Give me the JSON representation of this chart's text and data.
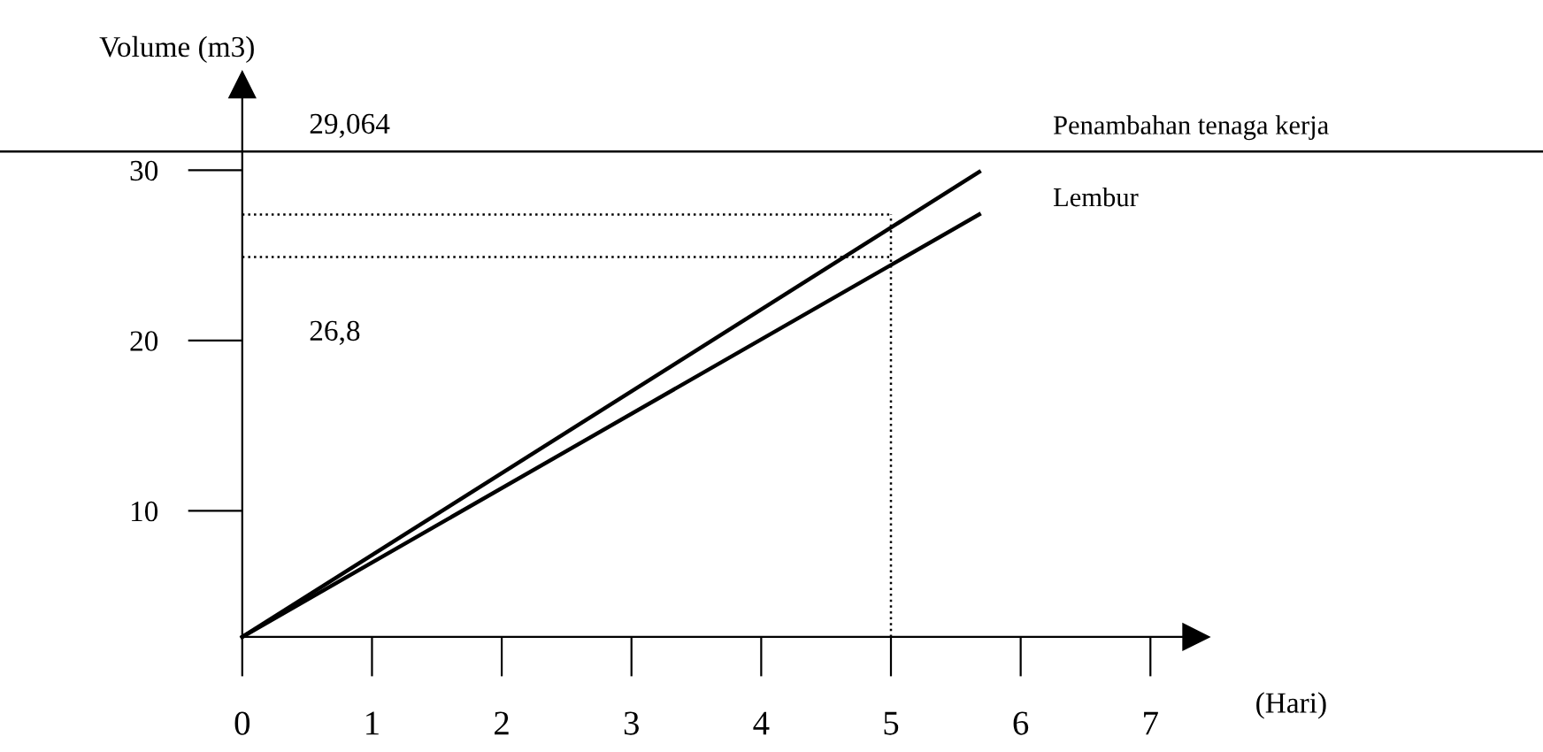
{
  "chart_data": {
    "type": "line",
    "xlabel": "(Hari)",
    "ylabel": "Volume (m3)",
    "xlim": [
      0,
      7.35
    ],
    "ylim": [
      2.6,
      35
    ],
    "xticks": [
      0,
      1,
      2,
      3,
      4,
      5,
      6,
      7
    ],
    "yticks": [
      10,
      20,
      30
    ],
    "series": [
      {
        "name": "Penambahan tenaga kerja",
        "color": "#000000",
        "x": [
          0,
          5.68
        ],
        "values": [
          2.6,
          29.9
        ]
      },
      {
        "name": "Lembur",
        "color": "#000000",
        "x": [
          0,
          5.68
        ],
        "values": [
          2.6,
          27.4
        ]
      },
      {
        "color": "#000000",
        "x": [
          0,
          5
        ],
        "values": [
          27.4,
          27.4
        ],
        "line_style": "dotted"
      },
      {
        "color": "#000000",
        "x": [
          0,
          5
        ],
        "values": [
          24.9,
          24.9
        ],
        "line_style": "dotted"
      },
      {
        "color": "#000000",
        "x": [
          5,
          5
        ],
        "values": [
          2.6,
          27.4
        ],
        "line_style": "dotted"
      }
    ],
    "ref_lines": [
      {
        "axis": "y",
        "value": 31.1,
        "color": "#000000"
      }
    ],
    "annotations": [
      "29,064",
      "26,8"
    ],
    "grid": false,
    "legend": false,
    "marker": "none",
    "line_style": "solid"
  }
}
